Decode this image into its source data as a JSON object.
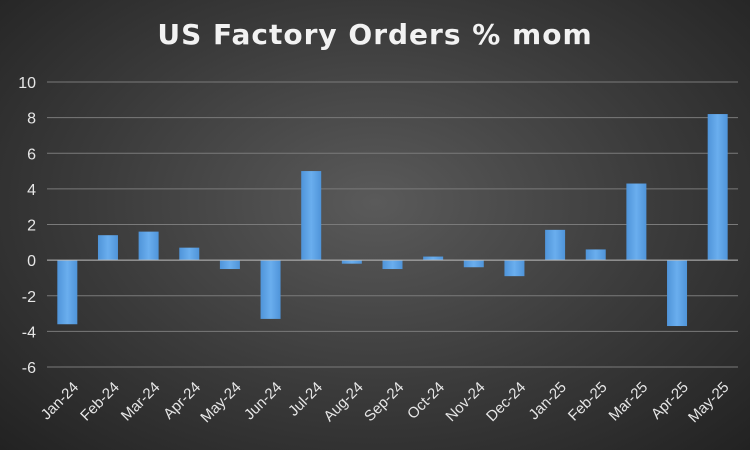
{
  "chart_data": {
    "type": "bar",
    "title": "US Factory Orders % mom",
    "categories": [
      "Jan-24",
      "Feb-24",
      "Mar-24",
      "Apr-24",
      "May-24",
      "Jun-24",
      "Jul-24",
      "Aug-24",
      "Sep-24",
      "Oct-24",
      "Nov-24",
      "Dec-24",
      "Jan-25",
      "Feb-25",
      "Mar-25",
      "Apr-25",
      "May-25"
    ],
    "values": [
      -3.6,
      1.4,
      1.6,
      0.7,
      -0.5,
      -3.3,
      5.0,
      -0.2,
      -0.5,
      0.2,
      -0.4,
      -0.9,
      1.7,
      0.6,
      4.3,
      -3.7,
      8.2
    ],
    "xlabel": "",
    "ylabel": "",
    "ylim": [
      -6,
      10
    ],
    "yticks": [
      10,
      8,
      6,
      4,
      2,
      0,
      -2,
      -4,
      -6
    ],
    "grid": true,
    "legend": "none",
    "bar_color": "#4f94d9",
    "bar_color_light": "#6aaeee"
  }
}
